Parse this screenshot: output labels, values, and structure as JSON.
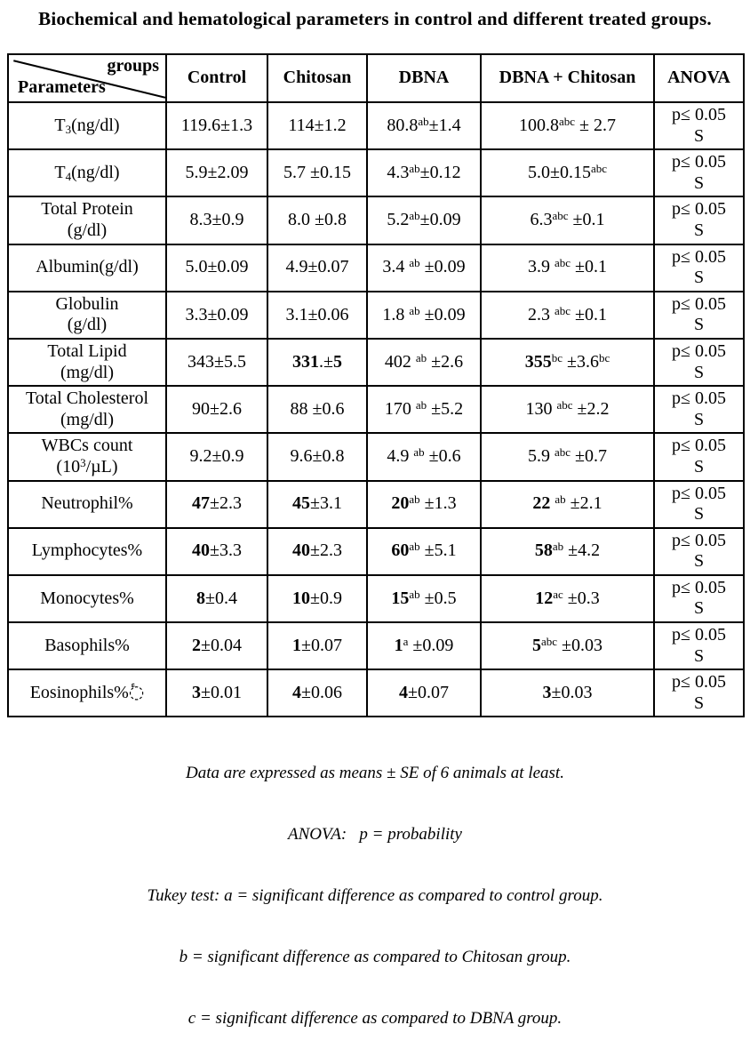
{
  "title": "Biochemical and hematological parameters in control and different treated groups.",
  "table": {
    "corner": {
      "top_right": "groups",
      "bottom_left": "Parameters"
    },
    "columns": [
      "Control",
      "Chitosan",
      "DBNA",
      "DBNA + Chitosan",
      "ANOVA"
    ],
    "anova_value": "p≤ 0.05\nS",
    "rows": [
      {
        "param": "T_{3}(ng/dl)",
        "values": [
          "119.6±1.3",
          "114±1.2",
          "80.8^{ab}±1.4",
          "100.8^{abc} ± 2.7"
        ]
      },
      {
        "param": "T_{4}(ng/dl)",
        "values": [
          "5.9±2.09",
          "5.7 ±0.15",
          "4.3^{ab}±0.12",
          "5.0±0.15^{abc}"
        ]
      },
      {
        "param": "Total Protein\n(g/dl)",
        "values": [
          "8.3±0.9",
          "8.0 ±0.8",
          "5.2^{ab}±0.09",
          "6.3^{abc} ±0.1"
        ]
      },
      {
        "param": "Albumin(g/dl)",
        "values": [
          "5.0±0.09",
          "4.9±0.07",
          "3.4 ^{ab} ±0.09",
          "3.9 ^{abc} ±0.1"
        ]
      },
      {
        "param": "Globulin\n(g/dl)",
        "values": [
          "3.3±0.09",
          "3.1±0.06",
          "1.8 ^{ab} ±0.09",
          "2.3 ^{abc} ±0.1"
        ]
      },
      {
        "param": "Total Lipid\n(mg/dl)",
        "values": [
          "343±5.5",
          "**331**.±**5**",
          "402 ^{ab} ±2.6",
          "**355**^{bc} ±3.6^{bc}"
        ]
      },
      {
        "param": "Total Cholesterol\n(mg/dl)",
        "values": [
          "90±2.6",
          "88 ±0.6",
          "170 ^{ab} ±5.2",
          "130 ^{abc} ±2.2"
        ]
      },
      {
        "param": "WBCs count\n(10^{3}/µL)",
        "values": [
          "9.2±0.9",
          "9.6±0.8",
          "4.9 ^{ab} ±0.6",
          "5.9 ^{abc} ±0.7"
        ]
      },
      {
        "param": "Neutrophil%",
        "values": [
          "**47**±2.3",
          "**45**±3.1",
          "**20**^{ab} ±1.3",
          "**22** ^{ab} ±2.1"
        ]
      },
      {
        "param": "Lymphocytes%",
        "values": [
          "**40**±3.3",
          "**40**±2.3",
          "**60**^{ab} ±5.1",
          "**58**^{ab} ±4.2"
        ]
      },
      {
        "param": "Monocytes%",
        "values": [
          "**8**±0.4",
          "**10**±0.9",
          "**15**^{ab} ±0.5",
          "**12**^{ac} ±0.3"
        ]
      },
      {
        "param": "Basophils%",
        "values": [
          "**2**±0.04",
          "**1**±0.07",
          "**1**^{a} ±0.09",
          "**5**^{abc} ±0.03"
        ]
      },
      {
        "param": "Eosinophils%◌ٔ",
        "values": [
          "**3**±0.01",
          "**4**±0.06",
          "**4**±0.07",
          "**3**±0.03"
        ]
      }
    ]
  },
  "footnotes": [
    "Data are expressed as means ± SE of 6 animals at least.",
    "ANOVA:   p = probability",
    "Tukey test: a = significant difference as compared to control group.",
    "b = significant difference as compared to Chitosan group.",
    "c = significant difference as compared to DBNA group."
  ]
}
